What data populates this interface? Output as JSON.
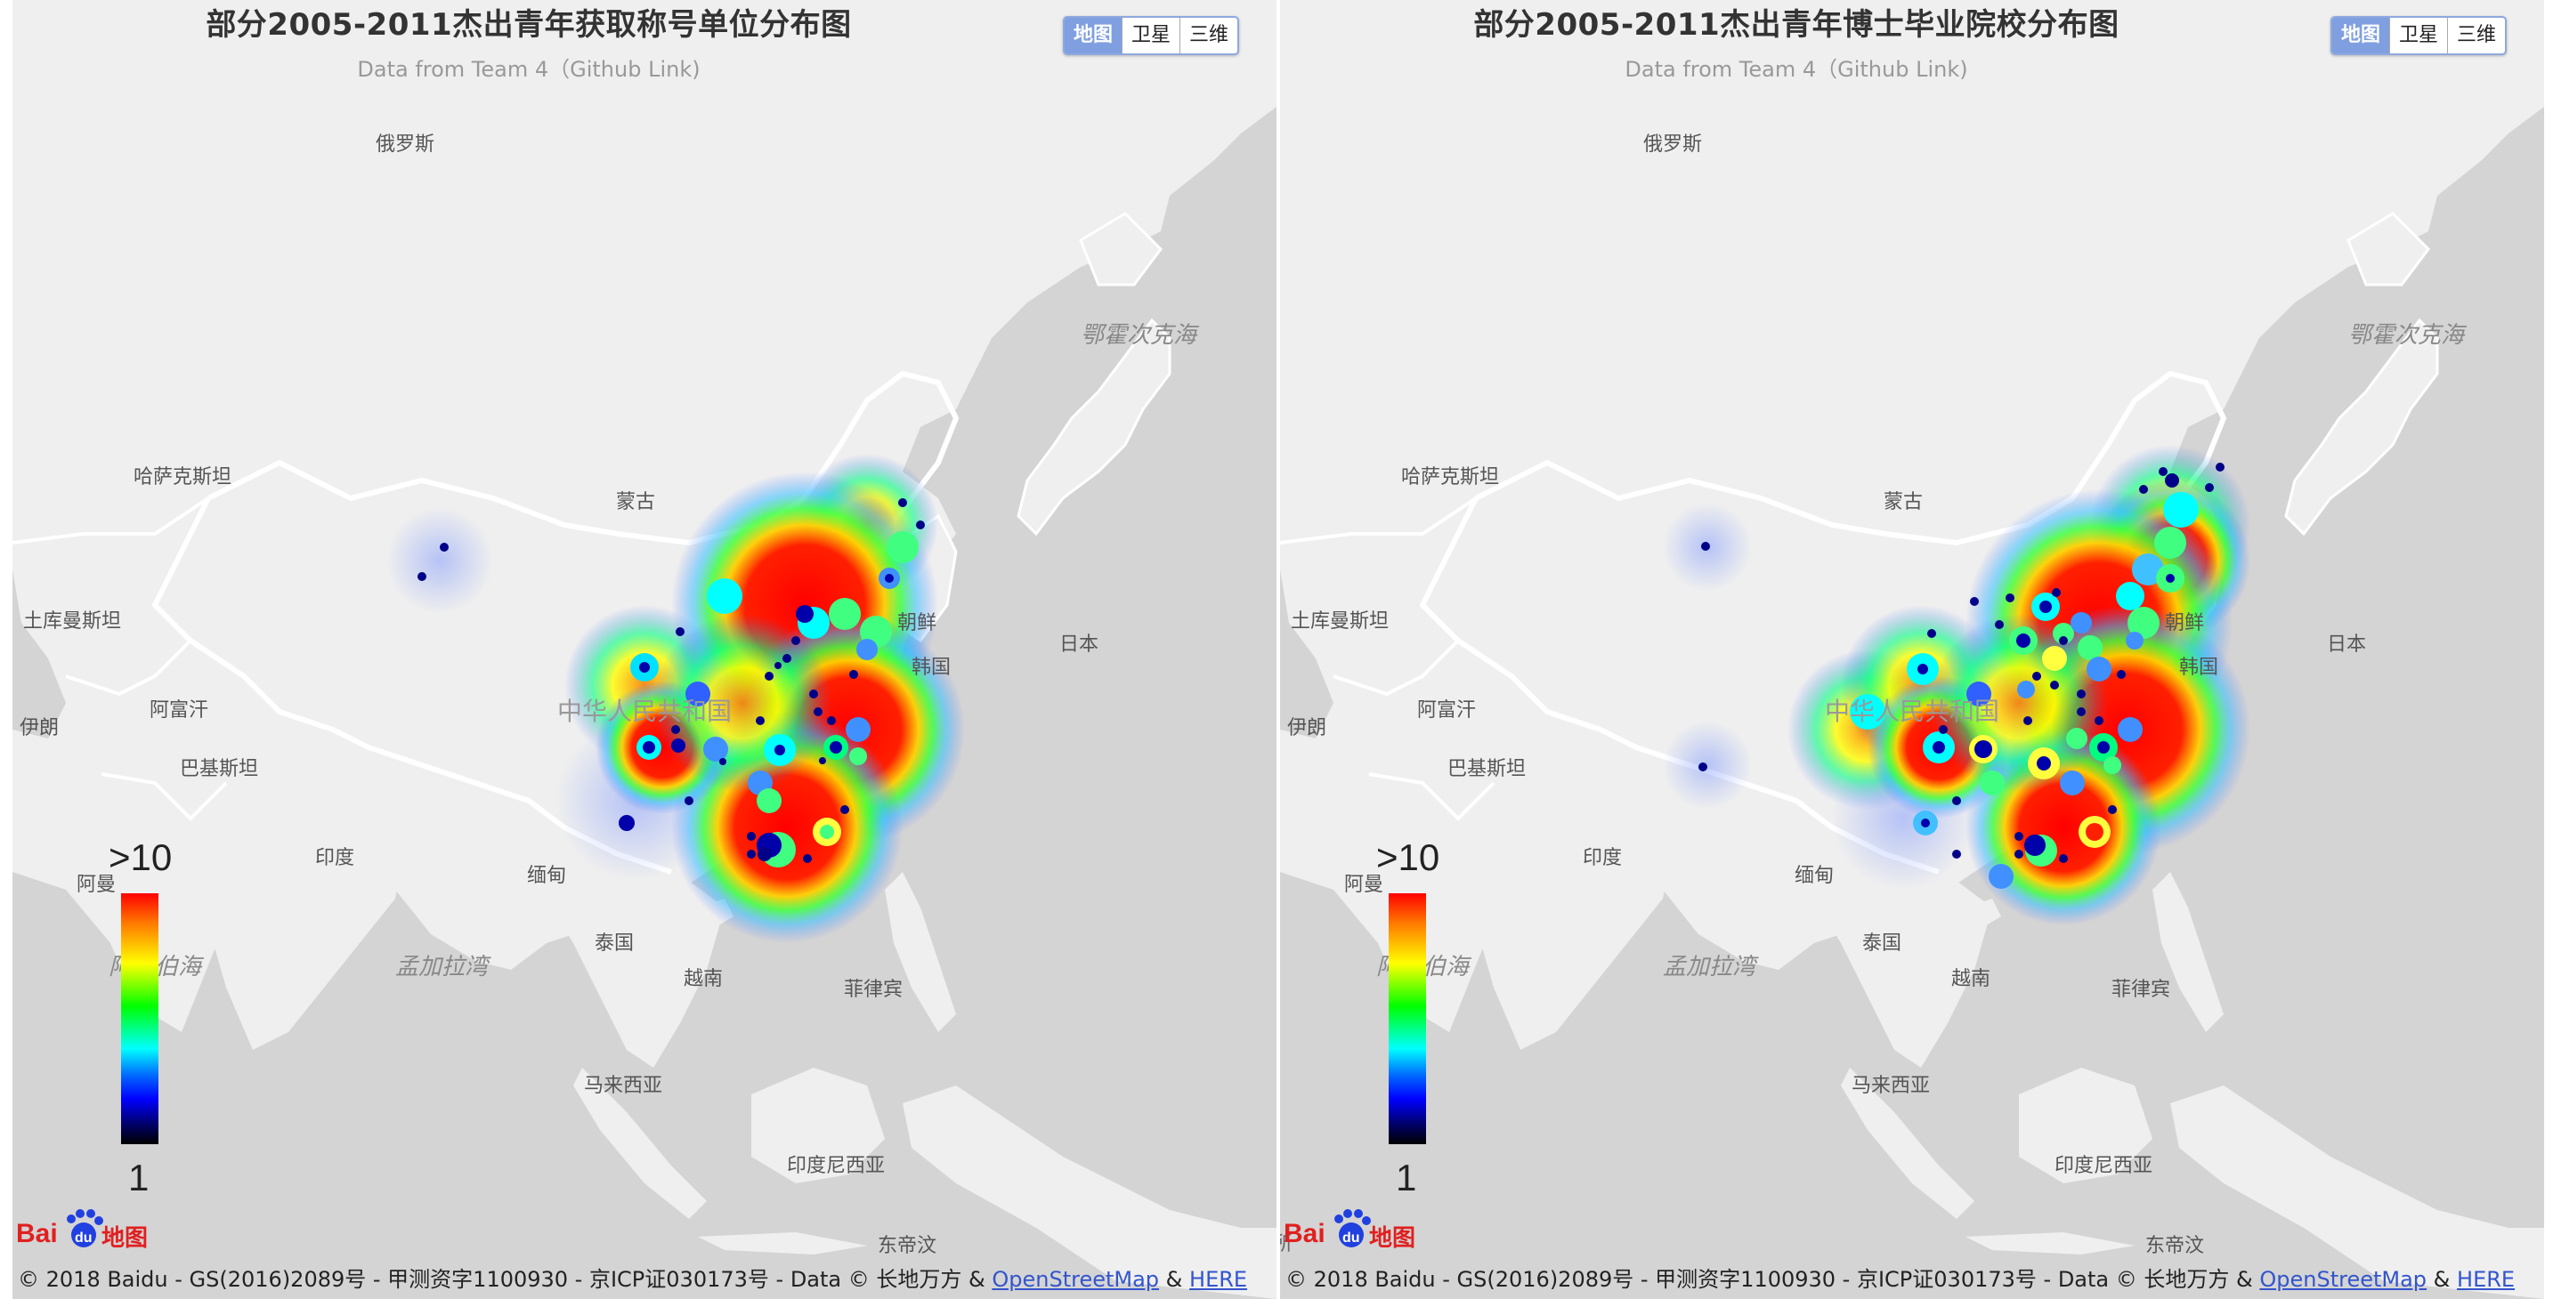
{
  "panels": [
    {
      "title": "部分2005-2011杰出青年获取称号单位分布图",
      "subtitle": "Data from Team 4（Github Link)",
      "maptype": {
        "map": "地图",
        "satellite": "卫星",
        "three_d": "三维"
      },
      "legend": {
        "max": ">10",
        "min": "1"
      },
      "logo": {
        "left": "Bai",
        "mid": "du",
        "right": "地图"
      },
      "copyright": {
        "text": "© 2018 Baidu - GS(2016)2089号 - 甲测资字1100930 - 京ICP证030173号 - Data © 长地万方 & ",
        "osm": "OpenStreetMap",
        "amp": " & ",
        "here": "HERE"
      },
      "labels": {
        "russia": "俄罗斯",
        "okhotsk": "鄂霍次克海",
        "kazakhstan": "哈萨克斯坦",
        "mongolia": "蒙古",
        "turkmenistan": "土库曼斯坦",
        "afghanistan": "阿富汗",
        "iran": "伊朗",
        "pakistan": "巴基斯坦",
        "china": "中华人民共和国",
        "korea": "朝鲜",
        "south_korea": "韩国",
        "japan": "日本",
        "india": "印度",
        "oman": "阿曼",
        "myanmar": "缅甸",
        "arabian_sea": "阿拉伯海",
        "bay_of_bengal": "孟加拉湾",
        "thailand": "泰国",
        "vietnam": "越南",
        "philippines": "菲律宾",
        "malaysia": "马来西亚",
        "indonesia": "印度尼西亚",
        "east_timor": "东帝汶"
      }
    },
    {
      "title": "部分2005-2011杰出青年博士毕业院校分布图",
      "subtitle": "Data from Team 4（Github Link)",
      "maptype": {
        "map": "地图",
        "satellite": "卫星",
        "three_d": "三维"
      },
      "legend": {
        "max": ">10",
        "min": "1"
      },
      "logo": {
        "left": "Bai",
        "mid": "du",
        "right": "地图"
      },
      "copyright": {
        "text": "© 2018 Baidu - GS(2016)2089号 - 甲测资字1100930 - 京ICP证030173号 - Data © 长地万方 & ",
        "osm": "OpenStreetMap",
        "amp": " & ",
        "here": "HERE"
      },
      "labels": {
        "russia": "俄罗斯",
        "okhotsk": "鄂霍次克海",
        "kazakhstan": "哈萨克斯坦",
        "mongolia": "蒙古",
        "turkmenistan": "土库曼斯坦",
        "afghanistan": "阿富汗",
        "iran": "伊朗",
        "pakistan": "巴基斯坦",
        "china": "中华人民共和国",
        "korea": "朝鲜",
        "south_korea": "韩国",
        "japan": "日本",
        "india": "印度",
        "oman": "阿曼",
        "myanmar": "缅甸",
        "arabian_sea": "阿拉伯海",
        "bay_of_bengal": "孟加拉湾",
        "thailand": "泰国",
        "vietnam": "越南",
        "philippines": "菲律宾",
        "malaysia": "马来西亚",
        "indonesia": "印度尼西亚",
        "east_timor": "东帝汶",
        "suo": "所"
      }
    }
  ],
  "colors": {
    "land": "#f2f2f2",
    "sea": "#d4d4d4",
    "border": "#ffffff",
    "active_tab": "#7f9fe0",
    "link": "#3355cc"
  },
  "icons": [
    "baidu-paw-icon"
  ]
}
